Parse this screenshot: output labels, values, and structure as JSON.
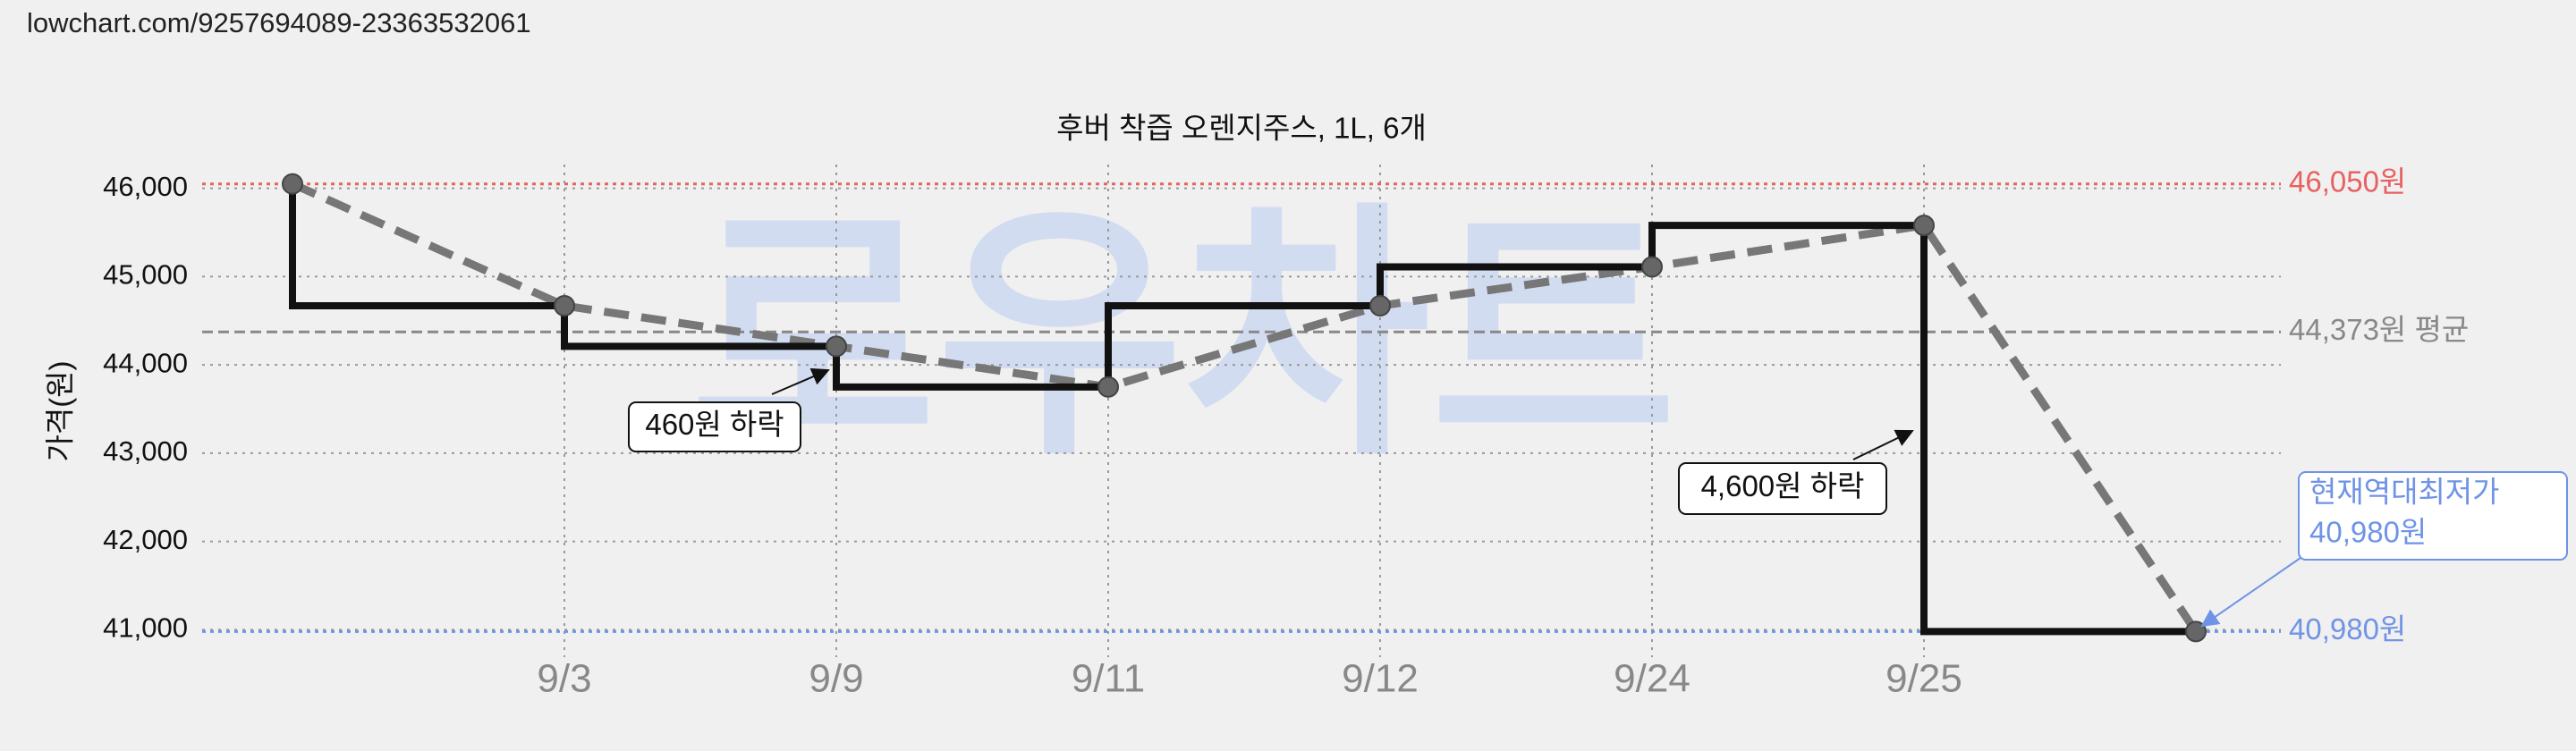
{
  "source_url": "lowchart.com/9257694089-23363532061",
  "chart_data": {
    "type": "step",
    "title": "후버 착즙 오렌지주스, 1L, 6개",
    "ylabel": "가격(원)",
    "watermark": "로우차트",
    "categories": [
      null,
      "9/3",
      "9/9",
      "9/11",
      "9/12",
      "9/24",
      "9/25",
      null
    ],
    "series": [
      {
        "name": "가격",
        "color": "#111111",
        "values": [
          46050,
          44670,
          44210,
          43750,
          44670,
          45110,
          45580,
          40980
        ]
      }
    ],
    "trend_color": "#777777",
    "ylim": [
      40700,
      46300
    ],
    "yticks": [
      {
        "value": 41000,
        "label": "41,000"
      },
      {
        "value": 42000,
        "label": "42,000"
      },
      {
        "value": 43000,
        "label": "43,000"
      },
      {
        "value": 44000,
        "label": "44,000"
      },
      {
        "value": 45000,
        "label": "45,000"
      },
      {
        "value": 46000,
        "label": "46,000"
      }
    ],
    "grid": true,
    "reference_lines": [
      {
        "value": 46050,
        "label": "46,050원",
        "color": "#e86060"
      },
      {
        "value": 44373,
        "label": "44,373원 평균",
        "color": "#888888"
      },
      {
        "value": 40980,
        "label": "40,980원",
        "color": "#6f93e6"
      }
    ],
    "annotations": [
      {
        "text": "460원 하락"
      },
      {
        "text": "4,600원 하락"
      }
    ],
    "current_low": {
      "title": "현재역대최저가",
      "price": "40,980원"
    }
  }
}
